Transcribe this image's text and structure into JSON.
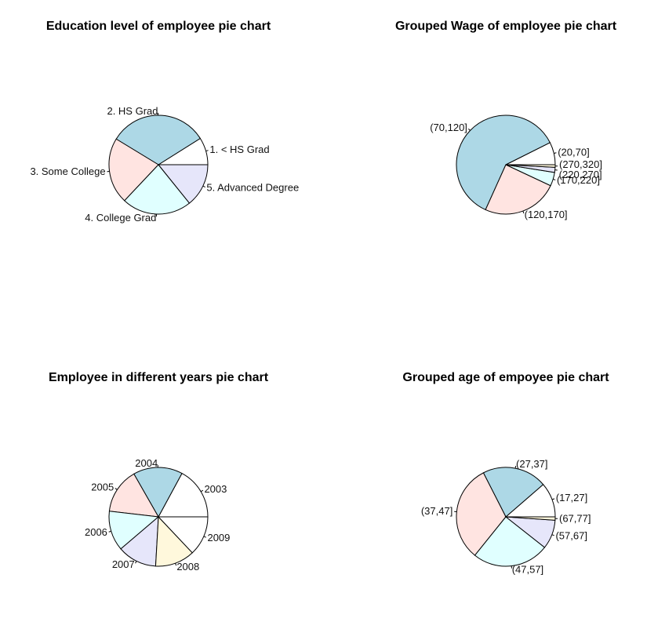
{
  "palette": [
    "#ffffff",
    "#add8e6",
    "#ffe4e1",
    "#e0ffff",
    "#e6e6fa",
    "#fff8dc"
  ],
  "chart_data": [
    {
      "type": "pie",
      "title": "Education level of employee pie chart",
      "categories": [
        "1. < HS Grad",
        "2. HS Grad",
        "3. Some College",
        "4. College Grad",
        "5. Advanced Degree"
      ],
      "values": [
        268,
        971,
        650,
        685,
        426
      ]
    },
    {
      "type": "pie",
      "title": "Grouped Wage of employee pie chart",
      "categories": [
        "(20,70]",
        "(70,120]",
        "(120,170]",
        "(170,220]",
        "(220,270]",
        "(270,320]"
      ],
      "values": [
        215,
        1770,
        720,
        130,
        48,
        25
      ]
    },
    {
      "type": "pie",
      "title": "Employee in different years pie chart",
      "categories": [
        "2003",
        "2004",
        "2005",
        "2006",
        "2007",
        "2008",
        "2009"
      ],
      "values": [
        513,
        485,
        447,
        392,
        386,
        388,
        389
      ]
    },
    {
      "type": "pie",
      "title": "Grouped age of empoyee pie chart",
      "categories": [
        "(17,27]",
        "(27,37]",
        "(37,47]",
        "(47,57]",
        "(57,67]",
        "(67,77]"
      ],
      "values": [
        337,
        627,
        941,
        746,
        282,
        33
      ]
    }
  ]
}
